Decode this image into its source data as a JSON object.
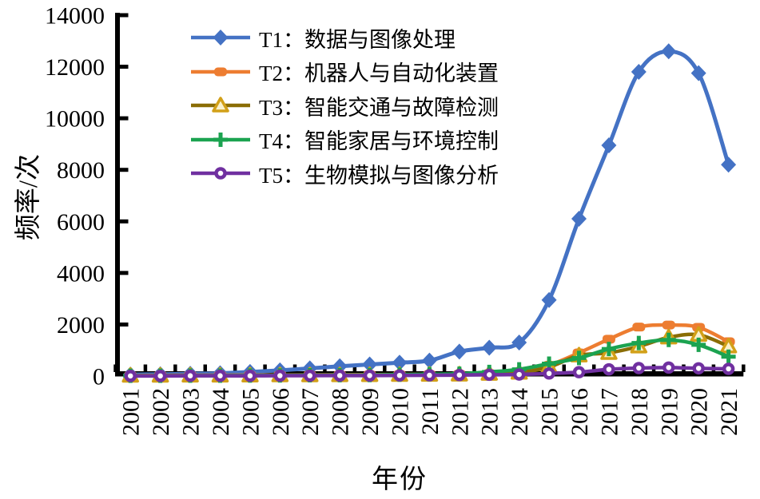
{
  "figure": {
    "background": "#ffffff",
    "text_color": "#000000",
    "axis_color": "#000000"
  },
  "chart_data": {
    "type": "line",
    "title": "",
    "xlabel": "年份",
    "ylabel": "频率/次",
    "x": [
      2001,
      2002,
      2003,
      2004,
      2005,
      2006,
      2007,
      2008,
      2009,
      2010,
      2011,
      2012,
      2013,
      2014,
      2015,
      2016,
      2017,
      2018,
      2019,
      2020,
      2021
    ],
    "ylim": [
      0,
      14000
    ],
    "yticks": [
      0,
      2000,
      4000,
      6000,
      8000,
      10000,
      12000,
      14000
    ],
    "grid": false,
    "legend_position": "top-left-inside",
    "series": [
      {
        "id": "T1",
        "label": "T1：数据与图像处理",
        "color": "#4472C4",
        "marker": "diamond",
        "values": [
          60,
          70,
          90,
          110,
          160,
          220,
          300,
          380,
          450,
          520,
          600,
          950,
          1100,
          1300,
          2950,
          6100,
          8950,
          11800,
          12600,
          11750,
          8200
        ]
      },
      {
        "id": "T2",
        "label": "T2：机器人与自动化装置",
        "color": "#ED7D31",
        "marker": "square",
        "values": [
          20,
          25,
          30,
          30,
          35,
          40,
          45,
          50,
          55,
          60,
          65,
          75,
          100,
          160,
          420,
          900,
          1430,
          1900,
          1980,
          1890,
          1330
        ]
      },
      {
        "id": "T3",
        "label": "T3：智能交通与故障检测",
        "color": "#8A6D05",
        "marker": "triangle",
        "marker_edge": "#D2A018",
        "marker_fill": "#F9F1CC",
        "values": [
          15,
          15,
          20,
          20,
          25,
          30,
          30,
          35,
          40,
          45,
          50,
          60,
          90,
          130,
          350,
          800,
          900,
          1150,
          1500,
          1600,
          1150
        ]
      },
      {
        "id": "T4",
        "label": "T4：智能家居与环境控制",
        "color": "#1BA350",
        "marker": "plus",
        "values": [
          10,
          10,
          15,
          15,
          20,
          25,
          30,
          35,
          40,
          55,
          70,
          90,
          160,
          260,
          480,
          700,
          1050,
          1280,
          1400,
          1210,
          750
        ]
      },
      {
        "id": "T5",
        "label": "T5：生物模拟与图像分析",
        "color": "#7030A0",
        "marker": "circle-open",
        "values": [
          5,
          5,
          10,
          10,
          10,
          15,
          15,
          20,
          20,
          25,
          30,
          40,
          50,
          60,
          100,
          150,
          260,
          310,
          330,
          300,
          280
        ]
      }
    ]
  }
}
